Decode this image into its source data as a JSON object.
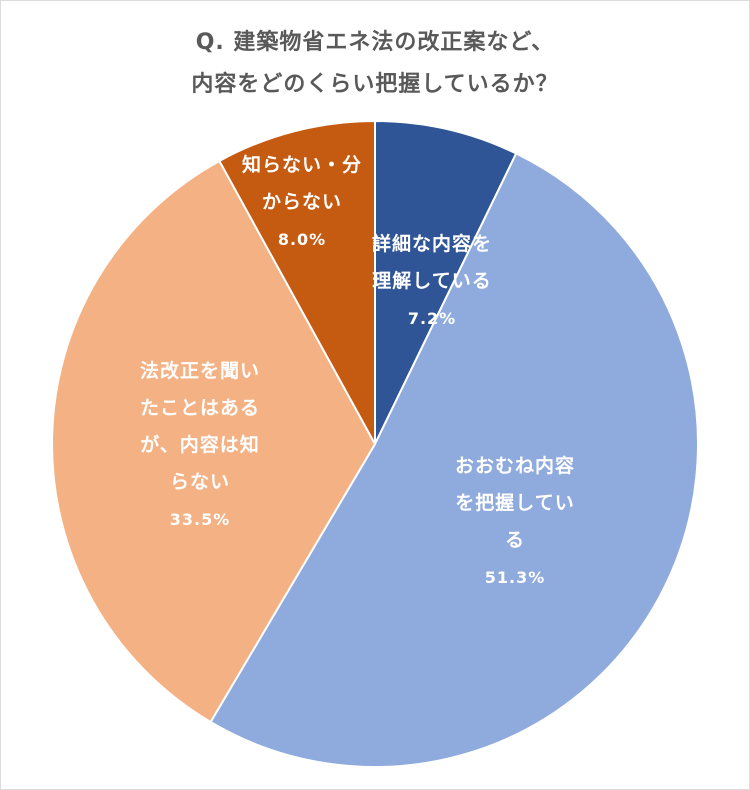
{
  "title": {
    "line1": "Q.  建築物省エネ法の改正案など、",
    "line2": "内容をどのくらい把握しているか？"
  },
  "chart_data": {
    "type": "pie",
    "title": "Q. 建築物省エネ法の改正案など、内容をどのくらい把握しているか？",
    "start_angle_deg": 0,
    "direction": "clockwise",
    "categories": [
      "詳細な内容を理解している",
      "おおむね内容を把握している",
      "法改正を聞いたことはあるが、内容は知らない",
      "知らない・分からない"
    ],
    "values": [
      7.2,
      51.3,
      33.5,
      8.0
    ],
    "unit": "%",
    "colors": [
      "#2F5597",
      "#8FAADC",
      "#F4B183",
      "#C55A11"
    ],
    "legend": "none (data labels inside slices)"
  },
  "labels": {
    "detail": {
      "line1": "詳細な内容を",
      "line2": "理解している",
      "pct": "7.2%"
    },
    "mostly": {
      "line1": "おおむね内容",
      "line2": "を把握してい",
      "line3": "る",
      "pct": "51.3%"
    },
    "heard": {
      "line1": "法改正を聞い",
      "line2": "たことはある",
      "line3": "が、内容は知",
      "line4": "らない",
      "pct": "33.5%"
    },
    "unknown": {
      "line1": "知らない・分",
      "line2": "からない",
      "pct": "8.0%"
    }
  }
}
